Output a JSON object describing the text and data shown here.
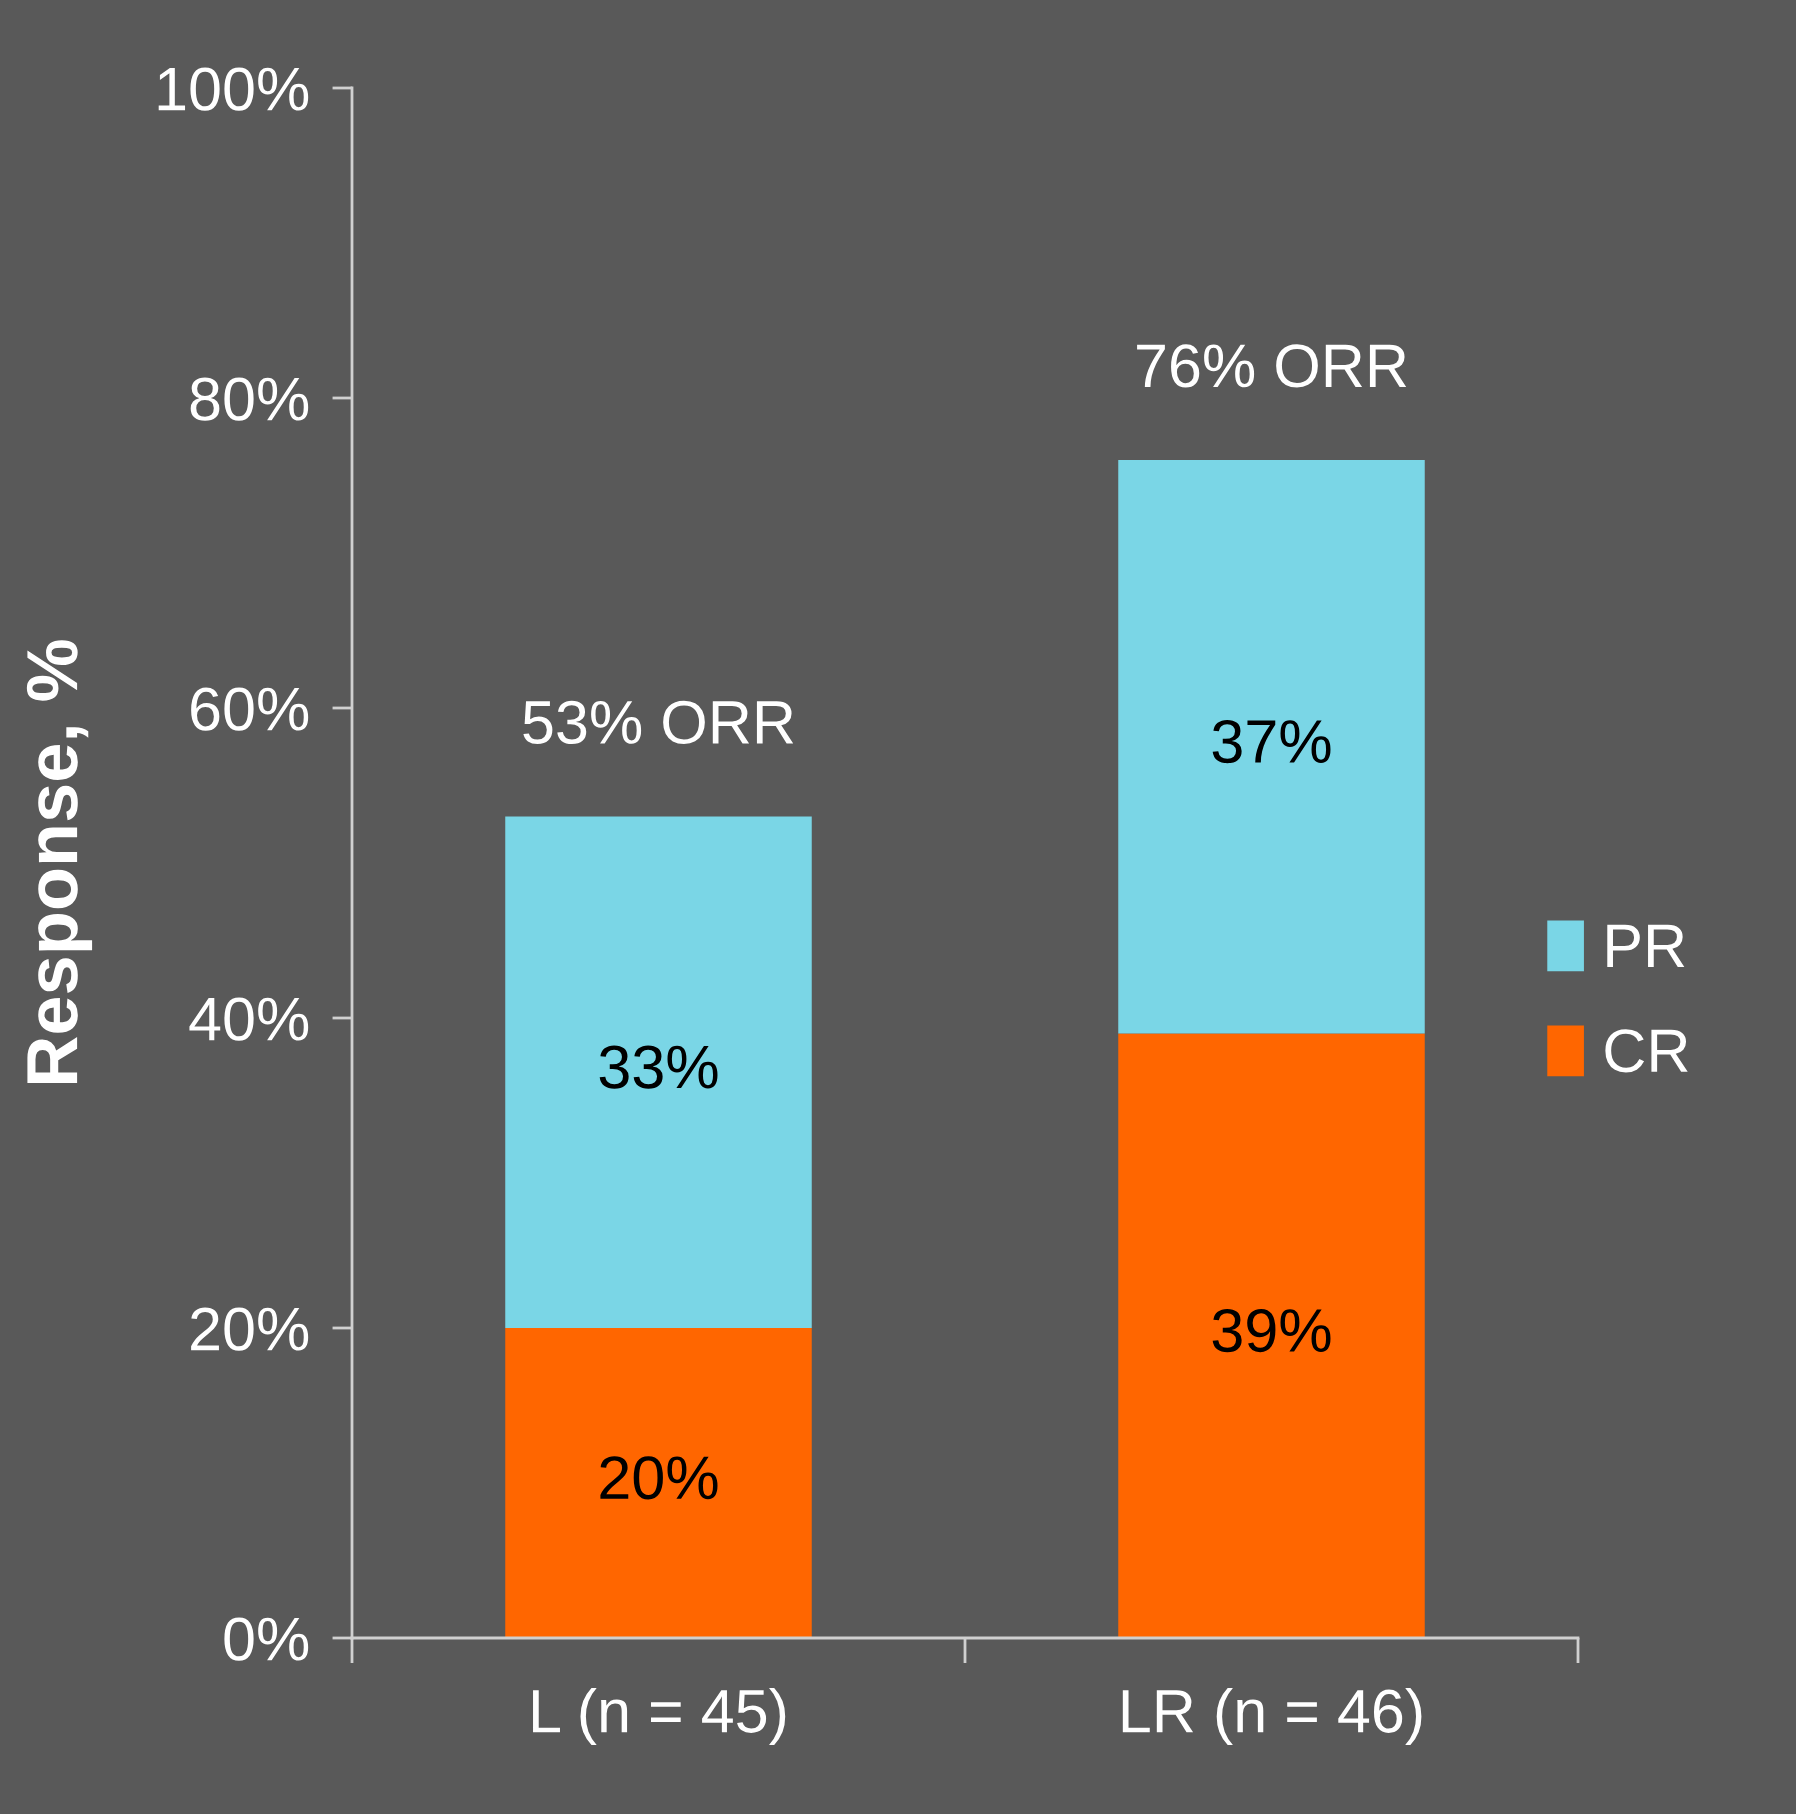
{
  "chart_data": {
    "type": "bar",
    "stacked": true,
    "ylabel": "Response, %",
    "categories": [
      "L (n = 45)",
      "LR (n = 46)"
    ],
    "series": [
      {
        "name": "CR",
        "color": "#ff6600",
        "values": [
          20,
          39
        ],
        "value_labels": [
          "20%",
          "39%"
        ]
      },
      {
        "name": "PR",
        "color": "#7ad6e6",
        "values": [
          33,
          37
        ],
        "value_labels": [
          "33%",
          "37%"
        ]
      }
    ],
    "totals": [
      "53% ORR",
      "76% ORR"
    ],
    "ylim": [
      0,
      100
    ],
    "yticks": [
      {
        "value": 0,
        "label": "0%"
      },
      {
        "value": 20,
        "label": "20%"
      },
      {
        "value": 40,
        "label": "40%"
      },
      {
        "value": 60,
        "label": "60%"
      },
      {
        "value": 80,
        "label": "80%"
      },
      {
        "value": 100,
        "label": "100%"
      }
    ],
    "legend": "right"
  }
}
